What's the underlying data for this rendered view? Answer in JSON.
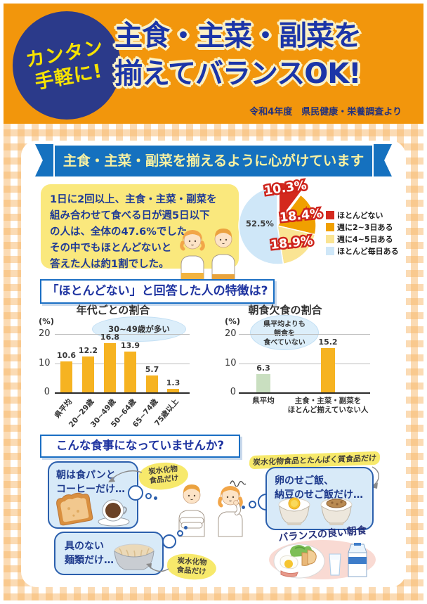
{
  "header": {
    "badge_line1": "カンタン",
    "badge_line2": "手軽に!",
    "title_line1": "主食・主菜・副菜を",
    "title_line2": "揃えてバランスOK!",
    "source": "令和4年度　県民健康・栄養調査より"
  },
  "section1": {
    "title": "主食・主菜・副菜を揃えるように心がけていますか?",
    "note_lines": [
      "1日に2回以上、主食・主菜・副菜を",
      "組み合わせて食べる日が週5日以下",
      "の人は、全体の47.6%でした。",
      "その中でもほとんどないと",
      "答えた人は約1割でした。"
    ]
  },
  "section2": {
    "title": "「ほとんどない」と回答した人の特徴は?"
  },
  "section3": {
    "title": "こんな食事になっていませんか?",
    "bubble1_lines": [
      "朝は食パンと",
      "コーヒーだけ…"
    ],
    "bubble2_lines": [
      "具のない",
      "麺類だけ…"
    ],
    "bubble3_lines": [
      "卵のせご飯、",
      "納豆のせご飯だけ…"
    ],
    "tag_carb1_lines": [
      "炭水化物",
      "食品だけ"
    ],
    "tag_carb2_lines": [
      "炭水化物",
      "食品だけ"
    ],
    "tag_carb_protein": "炭水化物食品とたんぱく質食品だけ",
    "balanced_caption": "バランスの良い朝食を"
  },
  "chart_data": [
    {
      "type": "pie",
      "title": "主食・主菜・副菜を揃えるように心がけていますか?",
      "labels": [
        "ほとんどない",
        "週に2~3日ある",
        "週に4~5日ある",
        "ほとんど毎日ある"
      ],
      "values": [
        10.3,
        18.4,
        18.9,
        52.5
      ],
      "value_labels": [
        "10.3%",
        "18.4%",
        "18.9%",
        "52.5%"
      ],
      "colors": [
        "#D4291E",
        "#F0A000",
        "#FAE493",
        "#CFE7F8"
      ],
      "legend_position": "right",
      "start_angle_deg": -90,
      "exploded_slice": 0
    },
    {
      "type": "bar",
      "title": "年代ごとの割合",
      "ylabel": "(%)",
      "ylim": [
        0,
        20
      ],
      "yticks": [
        0,
        10,
        20
      ],
      "categories": [
        "県平均",
        "20~29歳",
        "30~49歳",
        "50~64歳",
        "65~74歳",
        "75歳以上"
      ],
      "values": [
        10.6,
        12.2,
        16.8,
        13.9,
        5.7,
        1.3
      ],
      "bar_color": "#F6B321",
      "annotation": "30~49歳が多い",
      "grid": true
    },
    {
      "type": "bar",
      "title": "朝食欠食の割合",
      "ylabel": "(%)",
      "ylim": [
        0,
        20
      ],
      "yticks": [
        0,
        10,
        20
      ],
      "categories": [
        "県平均",
        "主食・主菜・副菜を\nほとんど揃えていない人"
      ],
      "values": [
        6.3,
        15.2
      ],
      "colors": [
        "#C9DFC0",
        "#F6B321"
      ],
      "annotation": "県平均よりも\n朝食を\n食べていない",
      "grid": true
    }
  ]
}
